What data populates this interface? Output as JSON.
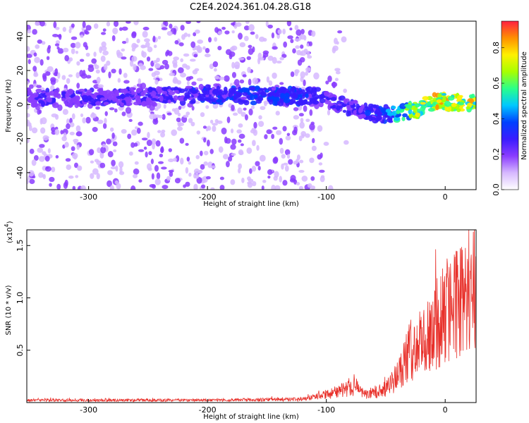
{
  "title": "C2E4.2024.361.04.28.G18",
  "colors": {
    "line": "#e8302a",
    "frame": "#000000",
    "background": "#ffffff"
  },
  "colorscale": [
    "#ffffff",
    "#d6b8ff",
    "#8a3cff",
    "#3a1cff",
    "#0040ff",
    "#00c8ff",
    "#2aff8a",
    "#a8ff00",
    "#fff000",
    "#ff9000",
    "#ff2040"
  ],
  "chart_data": [
    {
      "type": "heatmap",
      "xlabel": "Height of straight line (km)",
      "ylabel": "Frequency (Hz)",
      "xlim": [
        -352,
        26
      ],
      "ylim": [
        -50,
        49
      ],
      "xticks": [
        -300,
        -200,
        -100,
        0
      ],
      "yticks": [
        -40,
        -20,
        0,
        20,
        40
      ],
      "colorbar": {
        "label": "Normalized spectral amplitude",
        "range": [
          0,
          0.95
        ],
        "ticks": [
          0.0,
          0.2,
          0.4,
          0.6,
          0.8
        ]
      },
      "ridge": {
        "x": [
          -352,
          -300,
          -250,
          -200,
          -150,
          -110,
          -100,
          -80,
          -60,
          -40,
          -30,
          -20,
          -10,
          0,
          10,
          26
        ],
        "y": [
          4,
          4,
          5,
          6,
          5,
          5,
          3,
          -2,
          -5,
          -6,
          -4,
          -2,
          2,
          2,
          1,
          1
        ],
        "peak_amplitude": [
          0.3,
          0.3,
          0.3,
          0.35,
          0.4,
          0.35,
          0.3,
          0.3,
          0.35,
          0.55,
          0.7,
          0.75,
          0.85,
          0.9,
          0.85,
          0.8
        ]
      }
    },
    {
      "type": "line",
      "xlabel": "Height of straight line (km)",
      "ylabel": "SNR (10 * v/v)",
      "y_multiplier": "(x10",
      "y_multiplier_exp": "4",
      "y_multiplier_close": ")",
      "xlim": [
        -352,
        26
      ],
      "ylim": [
        0,
        1.65
      ],
      "xticks": [
        -300,
        -200,
        -100,
        0
      ],
      "yticks": [
        0.5,
        1.0,
        1.5
      ],
      "series": [
        {
          "x": [
            -352,
            -300,
            -250,
            -200,
            -150,
            -120,
            -110,
            -100,
            -90,
            -80,
            -75,
            -70,
            -60,
            -50,
            -45,
            -40,
            -35,
            -30,
            -25,
            -20,
            -15,
            -10,
            -5,
            0,
            5,
            10,
            15,
            20,
            26
          ],
          "y": [
            0.03,
            0.03,
            0.03,
            0.03,
            0.04,
            0.04,
            0.07,
            0.1,
            0.15,
            0.18,
            0.2,
            0.12,
            0.12,
            0.18,
            0.25,
            0.35,
            0.5,
            0.65,
            0.7,
            0.75,
            0.85,
            0.95,
            1.05,
            1.1,
            1.2,
            1.3,
            1.35,
            1.4,
            1.5
          ]
        }
      ]
    }
  ]
}
